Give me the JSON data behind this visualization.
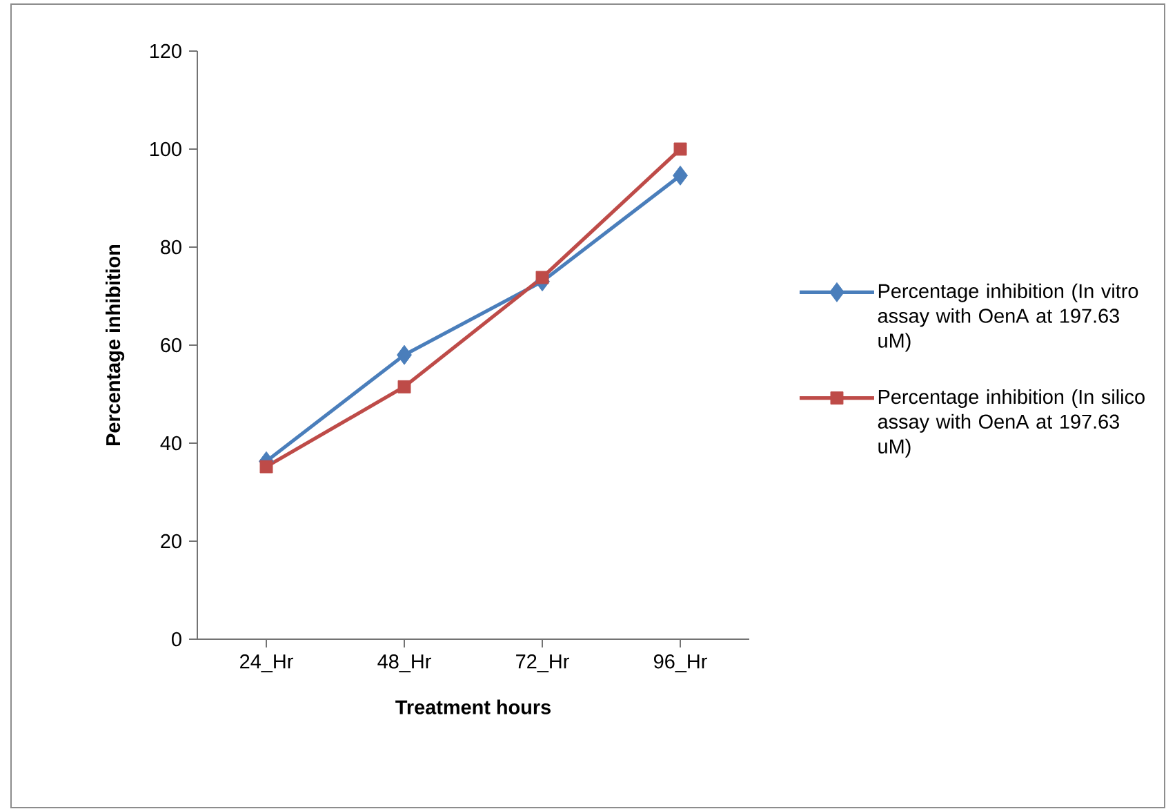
{
  "chart_data": {
    "type": "line",
    "xlabel": "Treatment hours",
    "ylabel": "Percentage inhibition",
    "categories": [
      "24_Hr",
      "48_Hr",
      "72_Hr",
      "96_Hr"
    ],
    "series": [
      {
        "name": "Percentage inhibition (In vitro assay with OenA at 197.63 uM)",
        "color": "#4a7ebb",
        "marker": "diamond",
        "values": [
          36.3,
          58.0,
          73.0,
          94.6
        ]
      },
      {
        "name": "Percentage inhibition (In silico assay with OenA at 197.63 uM)",
        "color": "#be4b48",
        "marker": "square",
        "values": [
          35.2,
          51.5,
          73.8,
          100
        ]
      }
    ],
    "ylim": [
      0,
      120
    ],
    "yticks": [
      0,
      20,
      40,
      60,
      80,
      100,
      120
    ],
    "grid": false,
    "legend": "right",
    "line_style": "solid"
  }
}
